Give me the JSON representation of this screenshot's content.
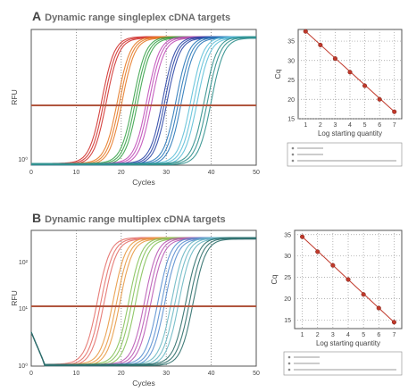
{
  "panels": [
    {
      "letter": "A",
      "title": "Dynamic range singleplex cDNA targets"
    },
    {
      "letter": "B",
      "title": "Dynamic range multiplex cDNA targets"
    }
  ],
  "chart_data": [
    {
      "type": "line",
      "xlabel": "Cycles",
      "ylabel": "RFU",
      "xlim": [
        0,
        50
      ],
      "x_ticks": [
        "0",
        "10",
        "20",
        "30",
        "40",
        "50"
      ],
      "y_ticks": [
        "10⁰"
      ],
      "scale_y": "log",
      "grid": "dashed vertical",
      "threshold_color": "#b0563f",
      "series": [
        {
          "color": "#d0312d",
          "values": [
            13.5,
            14.0,
            14.5
          ]
        },
        {
          "color": "#e67a26",
          "values": [
            17.0,
            17.5,
            18.0
          ]
        },
        {
          "color": "#3aa34a",
          "values": [
            20.5,
            21.0,
            21.5
          ]
        },
        {
          "color": "#c04fb8",
          "values": [
            23.5,
            24.0,
            24.6
          ]
        },
        {
          "color": "#2b46a6",
          "values": [
            27.0,
            27.5,
            28.0
          ]
        },
        {
          "color": "#2a78b8",
          "values": [
            30.0,
            30.6,
            31.2
          ]
        },
        {
          "color": "#5fc0d8",
          "values": [
            33.3,
            34.0,
            34.7
          ]
        },
        {
          "color": "#2f8f8c",
          "values": [
            36.3,
            37.0,
            37.8
          ]
        }
      ]
    },
    {
      "type": "scatter",
      "xlabel": "Log starting quantity",
      "ylabel": "Cq",
      "xlim": [
        0.5,
        7.5
      ],
      "ylim": [
        15,
        38
      ],
      "x_ticks": [
        "1",
        "2",
        "3",
        "4",
        "5",
        "6",
        "7"
      ],
      "y_ticks": [
        "15",
        "20",
        "25",
        "30",
        "35"
      ],
      "x": [
        1,
        2,
        3,
        4,
        5,
        6,
        7
      ],
      "y": [
        37.5,
        34.0,
        30.5,
        27.0,
        23.5,
        20.0,
        16.8
      ],
      "fit_color": "#c0392b"
    },
    {
      "type": "line",
      "xlabel": "Cycles",
      "ylabel": "RFU",
      "xlim": [
        0,
        50
      ],
      "x_ticks": [
        "0",
        "10",
        "20",
        "30",
        "40",
        "50"
      ],
      "y_ticks": [
        "10⁰",
        "10²",
        "10¹"
      ],
      "scale_y": "log",
      "grid": "dashed vertical",
      "threshold_color": "#b0563f",
      "series": [
        {
          "color": "#e4706a",
          "values": [
            12.5,
            13.3,
            14.0
          ]
        },
        {
          "color": "#e89a44",
          "values": [
            16.0,
            16.8,
            17.5
          ]
        },
        {
          "color": "#86c25a",
          "values": [
            19.5,
            20.2,
            21.0
          ]
        },
        {
          "color": "#b95ab5",
          "values": [
            23.0,
            23.7,
            24.4
          ]
        },
        {
          "color": "#5a8fd0",
          "values": [
            26.0,
            26.8,
            27.5
          ]
        },
        {
          "color": "#6bb8c4",
          "values": [
            29.0,
            29.8,
            30.6
          ]
        },
        {
          "color": "#2d6e6a",
          "values": [
            32.2,
            33.0,
            33.8
          ]
        }
      ]
    },
    {
      "type": "scatter",
      "xlabel": "Log starting quantity",
      "ylabel": "Cq",
      "xlim": [
        0.5,
        7.5
      ],
      "ylim": [
        13,
        36
      ],
      "x_ticks": [
        "1",
        "2",
        "3",
        "4",
        "5",
        "6",
        "7"
      ],
      "y_ticks": [
        "15",
        "20",
        "25",
        "30",
        "35"
      ],
      "x": [
        1,
        2,
        3,
        4,
        5,
        6,
        7
      ],
      "y": [
        34.5,
        31.0,
        27.8,
        24.5,
        21.0,
        17.8,
        14.5
      ],
      "fit_color": "#c0392b"
    }
  ]
}
